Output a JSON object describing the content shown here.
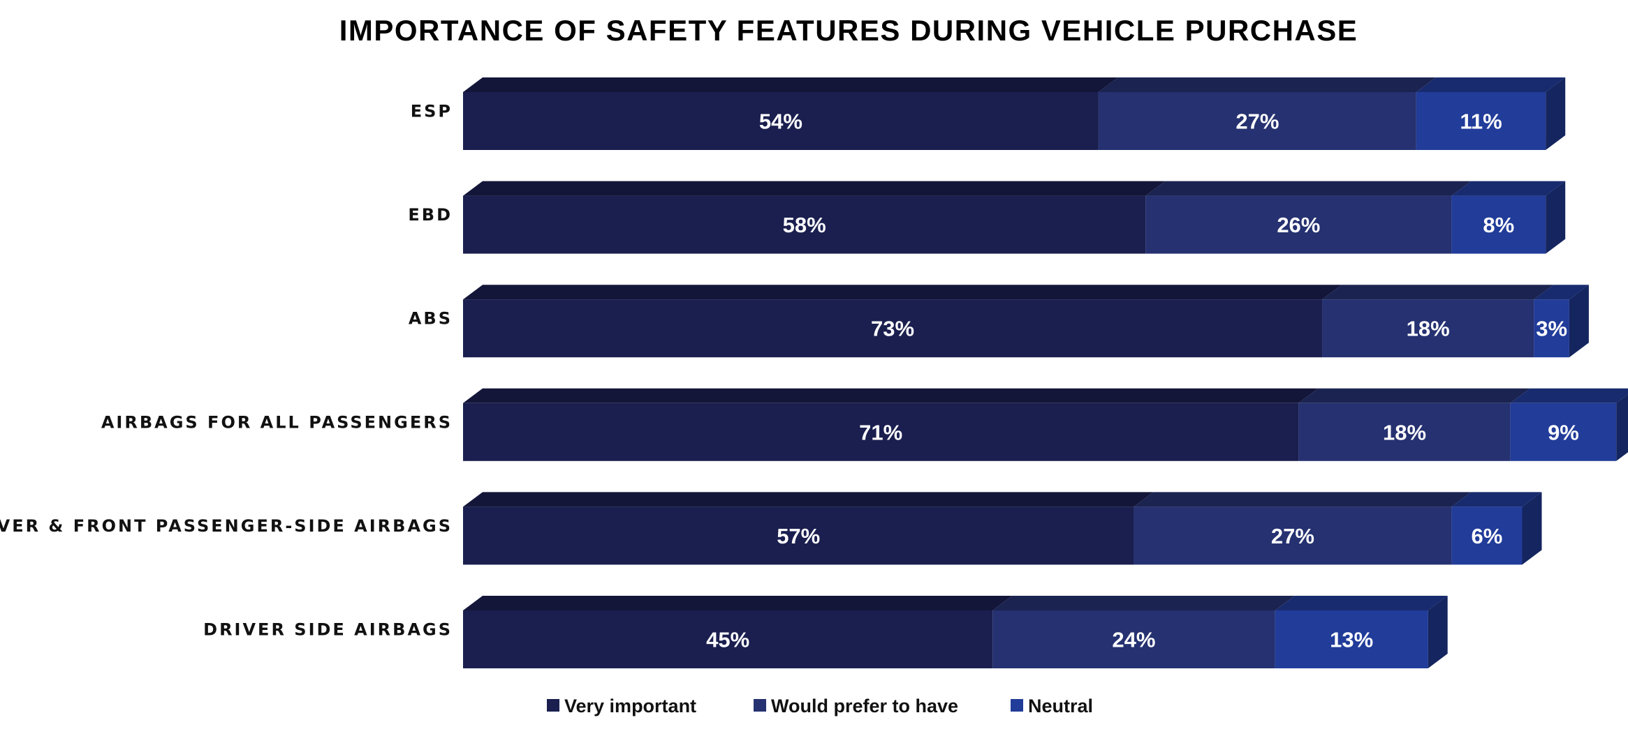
{
  "chart_data": {
    "type": "bar",
    "orientation": "horizontal",
    "stacked": true,
    "style": "3d",
    "title": "IMPORTANCE OF SAFETY FEATURES DURING VEHICLE PURCHASE",
    "categories": [
      "ESP",
      "EBD",
      "ABS",
      "AIRBAGS FOR ALL PASSENGERS",
      "DRIVER & FRONT PASSENGER-SIDE AIRBAGS",
      "DRIVER SIDE AIRBAGS"
    ],
    "series": [
      {
        "name": "Very important",
        "values": [
          54,
          58,
          73,
          71,
          57,
          45
        ],
        "labels": [
          "54%",
          "58%",
          "73%",
          "71%",
          "57%",
          "45%"
        ],
        "color": "#1a1f4f"
      },
      {
        "name": "Would prefer to have",
        "values": [
          27,
          26,
          18,
          18,
          27,
          24
        ],
        "labels": [
          "27%",
          "26%",
          "18%",
          "18%",
          "27%",
          "24%"
        ],
        "color": "#253170"
      },
      {
        "name": "Neutral",
        "values": [
          11,
          8,
          3,
          9,
          6,
          13
        ],
        "labels": [
          "11%",
          "8%",
          "3%",
          "9%",
          "6%",
          "13%"
        ],
        "color": "#213c99"
      }
    ],
    "xlim": [
      0,
      100
    ],
    "grid": false,
    "legend_position": "bottom"
  }
}
